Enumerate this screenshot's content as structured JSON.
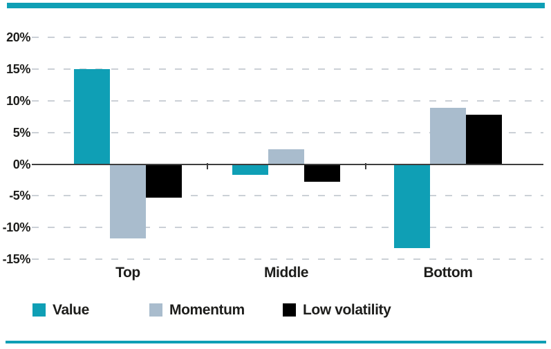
{
  "page": {
    "background": "#ffffff",
    "accent_bar_color": "#0f9fb5",
    "axis_line_color": "#3e3e3e",
    "gridline_color": "#cbd0d6",
    "text_color": "#1d1d1b"
  },
  "chart_data": {
    "type": "bar",
    "title": "",
    "xlabel": "",
    "ylabel": "",
    "categories": [
      "Top",
      "Middle",
      "Bottom"
    ],
    "series": [
      {
        "name": "Value",
        "color": "#0f9fb5",
        "values": [
          15.0,
          -1.7,
          -13.3
        ]
      },
      {
        "name": "Momentum",
        "color": "#a9bccd",
        "values": [
          -11.7,
          2.4,
          8.9
        ]
      },
      {
        "name": "Low volatility",
        "color": "#000000",
        "values": [
          -5.3,
          -2.8,
          7.8
        ]
      }
    ],
    "y_ticks": [
      20,
      15,
      10,
      5,
      0,
      -5,
      -10,
      -15
    ],
    "y_tick_labels": [
      "20%",
      "15%",
      "10%",
      "5%",
      "0%",
      "-5%",
      "-10%",
      "-15%"
    ],
    "ylim": [
      -17.5,
      22
    ],
    "grid": "dashed-horizontal",
    "legend_position": "bottom"
  }
}
